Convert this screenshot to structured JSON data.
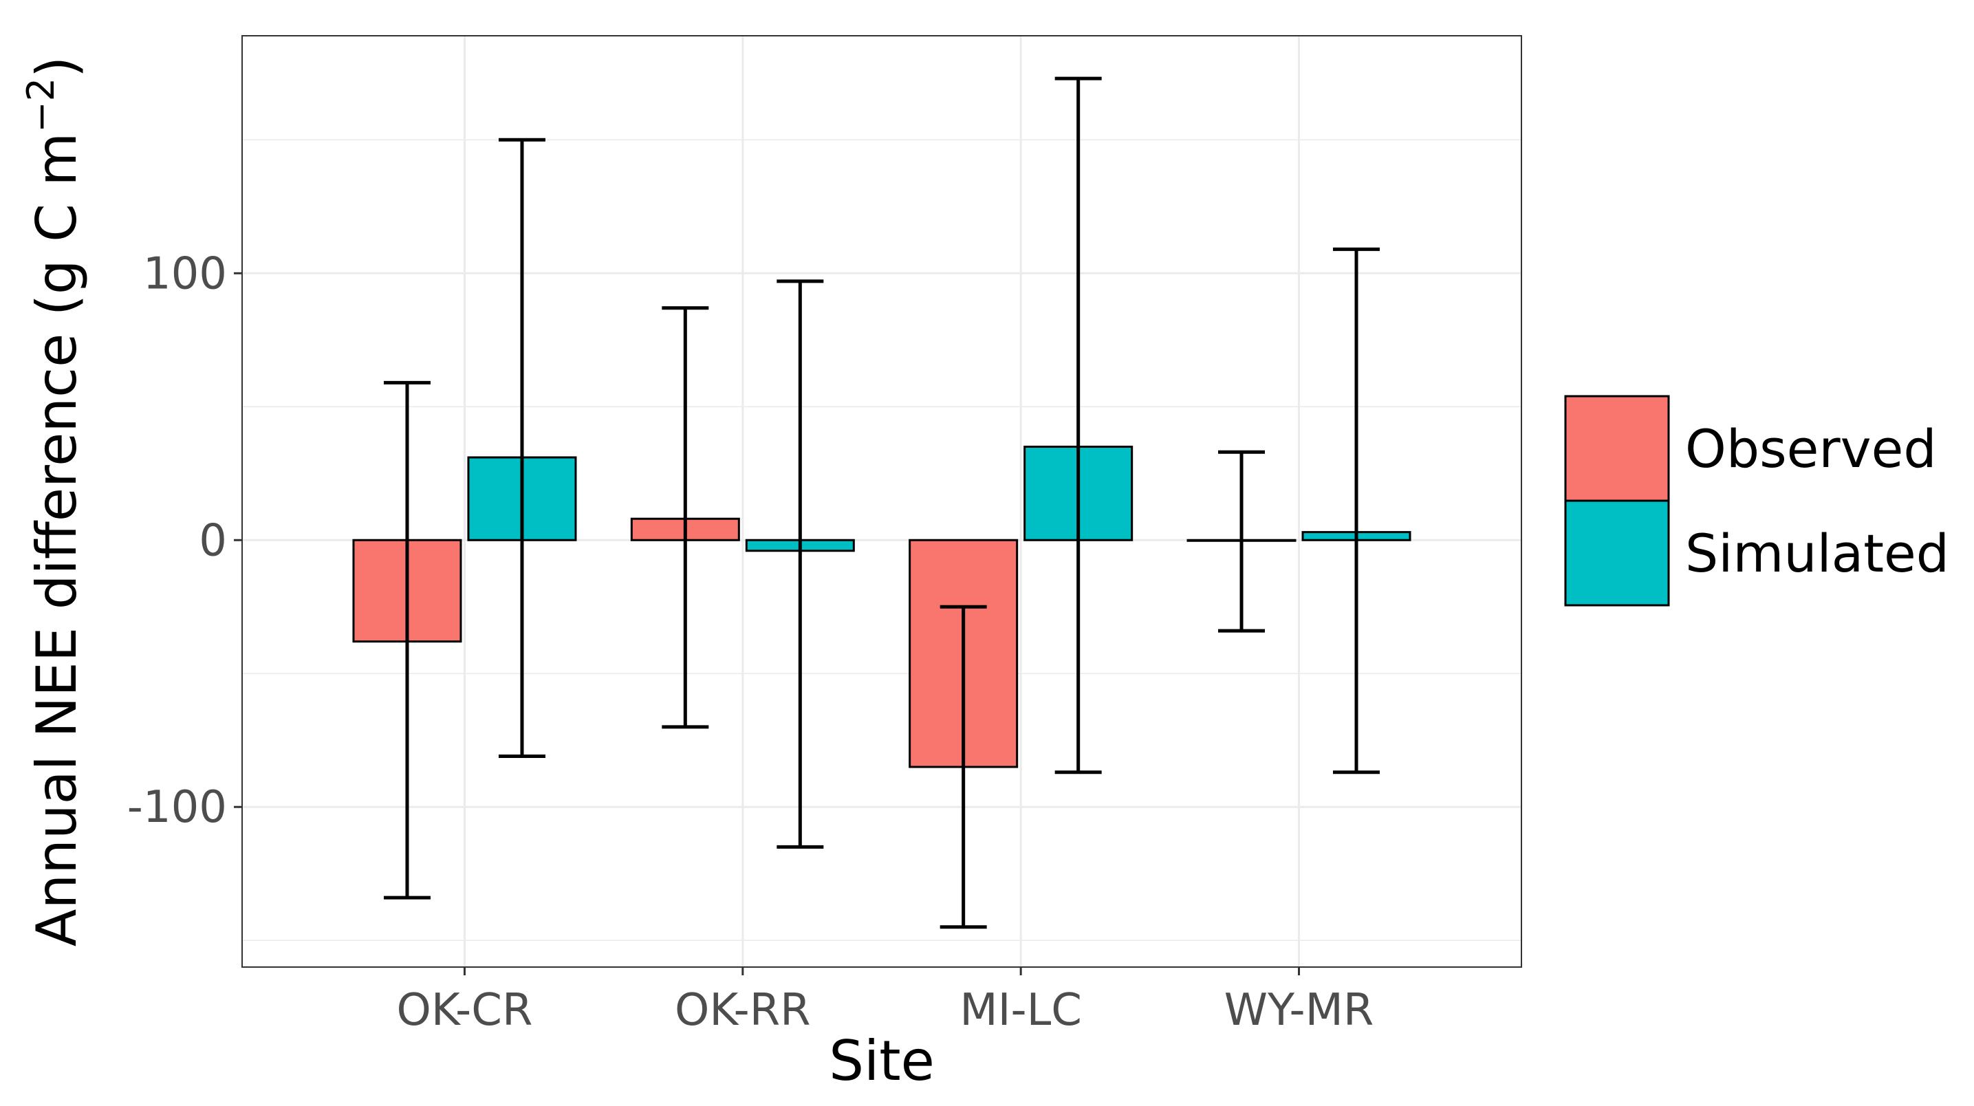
{
  "chart_data": {
    "type": "bar",
    "title": "",
    "xlabel": "Site",
    "ylabel": "Annual NEE difference (g C m",
    "ylabel_superscript": "−2",
    "ylabel_close": ")",
    "categories": [
      "OK-CR",
      "OK-RR",
      "MI-LC",
      "WY-MR"
    ],
    "series": [
      {
        "name": "Observed",
        "color": "#F8766D",
        "values": [
          -38,
          8,
          -85,
          0
        ],
        "error_low": [
          -134,
          -70,
          -145,
          -34
        ],
        "error_high": [
          59,
          87,
          -25,
          33
        ]
      },
      {
        "name": "Simulated",
        "color": "#00BFC4",
        "values": [
          31,
          -4,
          35,
          3
        ],
        "error_low": [
          -81,
          -115,
          -87,
          -87
        ],
        "error_high": [
          150,
          97,
          173,
          109
        ]
      }
    ],
    "yticks": [
      -100,
      0,
      100
    ],
    "ytick_labels": [
      "-100",
      "0",
      "100"
    ],
    "ylim": [
      -160,
      189
    ],
    "grid": true,
    "legend_position": "right"
  }
}
